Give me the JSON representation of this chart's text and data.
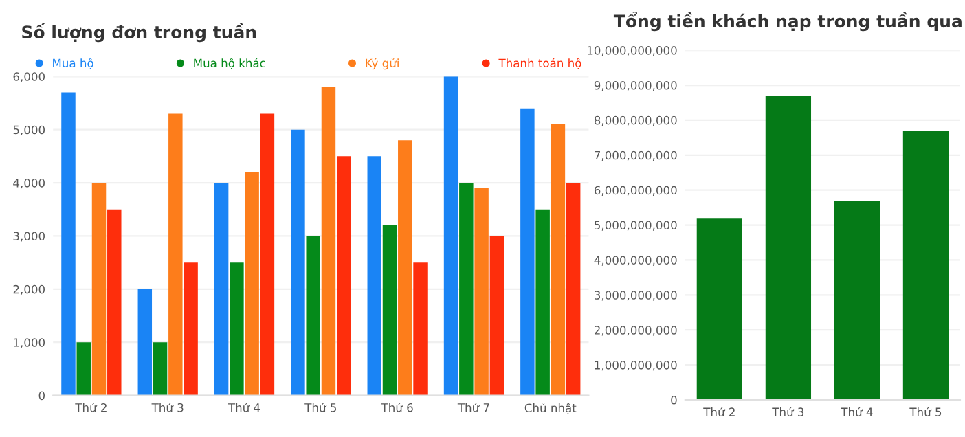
{
  "chart_data": [
    {
      "type": "bar",
      "title": "Số lượng đơn trong tuần",
      "categories": [
        "Thứ 2",
        "Thứ 3",
        "Thứ 4",
        "Thứ 5",
        "Thứ 6",
        "Thứ 7",
        "Chủ nhật"
      ],
      "series": [
        {
          "name": "Mua hộ",
          "color": "#1a84f5",
          "values": [
            5700,
            2000,
            4000,
            5000,
            4500,
            6000,
            5400
          ]
        },
        {
          "name": "Mua hộ khác",
          "color": "#058a1a",
          "values": [
            1000,
            1000,
            2500,
            3000,
            3200,
            4000,
            3500
          ]
        },
        {
          "name": "Ký gửi",
          "color": "#fd7d1b",
          "values": [
            4000,
            5300,
            4200,
            5800,
            4800,
            3900,
            5100
          ]
        },
        {
          "name": "Thanh toán hộ",
          "color": "#fe2e0c",
          "values": [
            3500,
            2500,
            5300,
            4500,
            2500,
            3000,
            4000
          ]
        }
      ],
      "ylim": [
        0,
        6000
      ],
      "yticks": [
        0,
        {
          "value": 1000,
          "label": "1,000"
        },
        {
          "value": 2000,
          "label": "2,000"
        },
        {
          "value": 3000,
          "label": "3,000"
        },
        {
          "value": 4000,
          "label": "4,000"
        },
        {
          "value": 5000,
          "label": "5,000"
        },
        {
          "value": 6000,
          "label": "6,000"
        }
      ],
      "grid": "y",
      "legend": "top"
    },
    {
      "type": "bar",
      "title": "Tổng tiền khách nạp trong tuần qua",
      "categories": [
        "Thứ 2",
        "Thứ 3",
        "Thứ 4",
        "Thứ 5"
      ],
      "series": [
        {
          "color": "#057a17",
          "values": [
            5200000000,
            8700000000,
            5700000000,
            7700000000
          ]
        }
      ],
      "ylim": [
        0,
        10000000000
      ],
      "yticks": [
        0,
        {
          "value": 1000000000,
          "label": "1,000,000,000"
        },
        {
          "value": 2000000000,
          "label": "2,000,000,000"
        },
        {
          "value": 3000000000,
          "label": "3,000,000,000"
        },
        {
          "value": 4000000000,
          "label": "4,000,000,000"
        },
        {
          "value": 5000000000,
          "label": "5,000,000,000"
        },
        {
          "value": 6000000000,
          "label": "6,000,000,000"
        },
        {
          "value": 7000000000,
          "label": "7,000,000,000"
        },
        {
          "value": 8000000000,
          "label": "8,000,000,000"
        },
        {
          "value": 9000000000,
          "label": "9,000,000,000"
        },
        {
          "value": 10000000000,
          "label": "10,000,000,000"
        }
      ],
      "grid": "y"
    }
  ]
}
